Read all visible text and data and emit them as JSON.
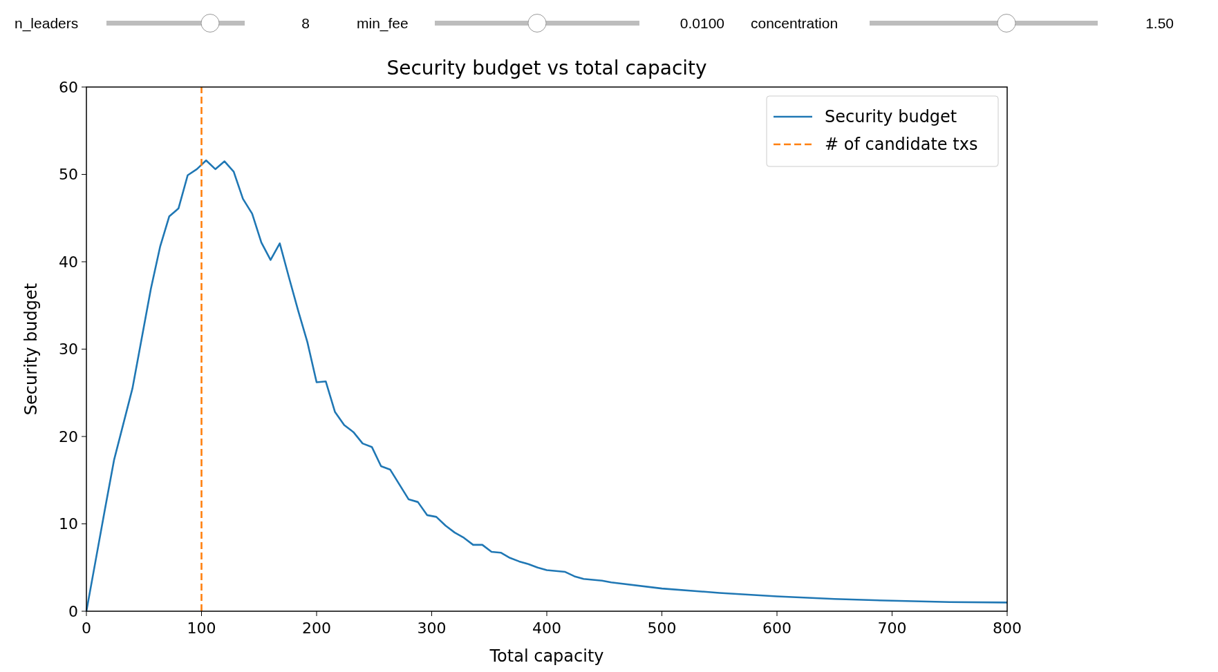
{
  "chart_data": {
    "type": "line",
    "title": "Security budget vs total capacity",
    "xlabel": "Total capacity",
    "ylabel": "Security budget",
    "annotations": [
      "n_leaders",
      "8",
      "min_fee",
      "0.0100",
      "concentration",
      "1.50"
    ],
    "xlim": [
      0,
      800
    ],
    "ylim": [
      0,
      60
    ],
    "xticks": [
      0,
      100,
      200,
      300,
      400,
      500,
      600,
      700,
      800
    ],
    "yticks": [
      0,
      10,
      20,
      30,
      40,
      50,
      60
    ],
    "legend": "top right",
    "grid": false,
    "line_style": "solid",
    "series": [
      {
        "name": "Security budget",
        "color": "#1f77b4",
        "x": [
          0,
          8,
          16,
          24,
          40,
          56,
          64,
          72,
          80,
          88,
          96,
          104,
          112,
          120,
          128,
          136,
          144,
          152,
          160,
          168,
          176,
          184,
          192,
          200,
          208,
          216,
          224,
          232,
          240,
          248,
          256,
          264,
          272,
          280,
          288,
          296,
          304,
          312,
          320,
          328,
          336,
          344,
          352,
          360,
          368,
          376,
          384,
          392,
          400,
          408,
          416,
          424,
          432,
          440,
          448,
          456,
          500,
          550,
          600,
          650,
          700,
          750,
          800
        ],
        "values": [
          0,
          5.8,
          11.6,
          17.3,
          25.5,
          36.9,
          41.7,
          45.2,
          46.1,
          49.9,
          50.6,
          51.6,
          50.6,
          51.5,
          50.3,
          47.2,
          45.5,
          42.2,
          40.2,
          42.1,
          38.2,
          34.4,
          30.8,
          26.2,
          26.3,
          22.8,
          21.3,
          20.5,
          19.2,
          18.8,
          16.6,
          16.2,
          14.5,
          12.8,
          12.5,
          11.0,
          10.8,
          9.8,
          9.0,
          8.4,
          7.6,
          7.6,
          6.8,
          6.7,
          6.1,
          5.7,
          5.4,
          5.0,
          4.7,
          4.6,
          4.5,
          4.0,
          3.7,
          3.6,
          3.5,
          3.3,
          2.6,
          2.1,
          1.7,
          1.4,
          1.2,
          1.05,
          1.0
        ]
      },
      {
        "name": "# of candidate txs",
        "color": "#ff7f0e",
        "line_style": "dashed",
        "x": [
          100,
          100
        ],
        "values": [
          0,
          60
        ]
      }
    ]
  }
}
